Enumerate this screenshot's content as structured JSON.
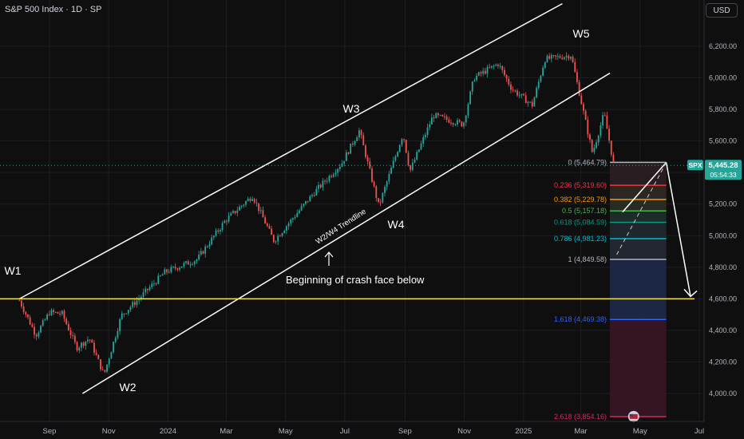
{
  "header": {
    "symbol_title": "S&P 500 Index · 1D · SP",
    "currency": "USD"
  },
  "price_tag": {
    "symbol": "SPX",
    "price": "5,445.28",
    "countdown": "05:54:33"
  },
  "colors": {
    "background": "#0f0f10",
    "up": "#26a69a",
    "down": "#ef5350",
    "support": "#f0e64a",
    "channel": "#ffffff"
  },
  "chart_data": {
    "type": "candlestick",
    "title": "S&P 500 Index · 1D · SP",
    "xlabel": "",
    "ylabel": "",
    "ylim": [
      3840,
      6330
    ],
    "y_ticks": [
      4000,
      4200,
      4400,
      4600,
      4800,
      5000,
      5200,
      5400,
      5600,
      5800,
      6000,
      6200
    ],
    "y_tick_labels": [
      "4,000.00",
      "4,200.00",
      "4,400.00",
      "4,600.00",
      "4,800.00",
      "5,000.00",
      "5,200.00",
      "5,400.00",
      "5,600.00",
      "5,800.00",
      "6,000.00",
      "6,200.00"
    ],
    "x_ticks": [
      {
        "date": "2023-09-01",
        "label": "Sep"
      },
      {
        "date": "2023-11-01",
        "label": "Nov"
      },
      {
        "date": "2024-01-01",
        "label": "2024"
      },
      {
        "date": "2024-03-01",
        "label": "Mar"
      },
      {
        "date": "2024-05-01",
        "label": "May"
      },
      {
        "date": "2024-07-01",
        "label": "Jul"
      },
      {
        "date": "2024-09-01",
        "label": "Sep"
      },
      {
        "date": "2024-11-01",
        "label": "Nov"
      },
      {
        "date": "2025-01-01",
        "label": "2025"
      },
      {
        "date": "2025-03-01",
        "label": "Mar"
      },
      {
        "date": "2025-05-01",
        "label": "May"
      },
      {
        "date": "2025-07-01",
        "label": "Jul"
      }
    ],
    "last_price": 5445.28,
    "series": [
      {
        "values": [
          [
            "2023-08-01",
            4590
          ],
          [
            "2023-08-18",
            4370
          ],
          [
            "2023-09-01",
            4515
          ],
          [
            "2023-09-14",
            4505
          ],
          [
            "2023-09-29",
            4290
          ],
          [
            "2023-10-12",
            4350
          ],
          [
            "2023-10-27",
            4117
          ],
          [
            "2023-11-14",
            4495
          ],
          [
            "2023-12-01",
            4595
          ],
          [
            "2023-12-29",
            4770
          ],
          [
            "2024-01-31",
            4850
          ],
          [
            "2024-02-29",
            5096
          ],
          [
            "2024-03-28",
            5254
          ],
          [
            "2024-04-19",
            4967
          ],
          [
            "2024-05-31",
            5277
          ],
          [
            "2024-06-28",
            5460
          ],
          [
            "2024-07-16",
            5667
          ],
          [
            "2024-08-05",
            5186
          ],
          [
            "2024-08-30",
            5648
          ],
          [
            "2024-09-06",
            5408
          ],
          [
            "2024-09-30",
            5762
          ],
          [
            "2024-10-31",
            5705
          ],
          [
            "2024-11-11",
            6001
          ],
          [
            "2024-12-06",
            6090
          ],
          [
            "2024-12-20",
            5930
          ],
          [
            "2025-01-10",
            5827
          ],
          [
            "2025-01-23",
            6118
          ],
          [
            "2025-02-19",
            6144
          ],
          [
            "2025-03-13",
            5521
          ],
          [
            "2025-03-25",
            5776
          ],
          [
            "2025-04-04",
            5445
          ]
        ]
      }
    ],
    "waves": [
      {
        "label": "W1",
        "date": "2023-08-01",
        "value": 4600
      },
      {
        "label": "W2",
        "date": "2023-10-27",
        "value": 4100
      },
      {
        "label": "W3",
        "date": "2024-07-16",
        "value": 5669
      },
      {
        "label": "W4",
        "date": "2024-08-05",
        "value": 5186
      },
      {
        "label": "W5",
        "date": "2025-02-19",
        "value": 6147
      }
    ],
    "annotations": [
      "W2/W4 Trendline",
      "Beginning of crash face below"
    ],
    "support_level": 4600,
    "fibonacci": [
      {
        "ratio": "0",
        "label": "0 (5,464.79)",
        "value": 5464.79,
        "color": "#b2b5be"
      },
      {
        "ratio": "0.236",
        "label": "0.236 (5,319.60)",
        "value": 5319.6,
        "color": "#f23645"
      },
      {
        "ratio": "0.382",
        "label": "0.382 (5,229.78)",
        "value": 5229.78,
        "color": "#ff9800"
      },
      {
        "ratio": "0.5",
        "label": "0.5 (5,157.18)",
        "value": 5157.18,
        "color": "#4caf50"
      },
      {
        "ratio": "0.618",
        "label": "0.618 (5,084.59)",
        "value": 5084.59,
        "color": "#089981"
      },
      {
        "ratio": "0.786",
        "label": "0.786 (4,981.23)",
        "value": 4981.23,
        "color": "#00bcd4"
      },
      {
        "ratio": "1",
        "label": "1 (4,849.58)",
        "value": 4849.58,
        "color": "#b2b5be"
      },
      {
        "ratio": "1.618",
        "label": "1.618 (4,469.38)",
        "value": 4469.38,
        "color": "#2962ff"
      },
      {
        "ratio": "2.618",
        "label": "2.618 (3,854.16)",
        "value": 3854.16,
        "color": "#e91e63"
      }
    ]
  }
}
